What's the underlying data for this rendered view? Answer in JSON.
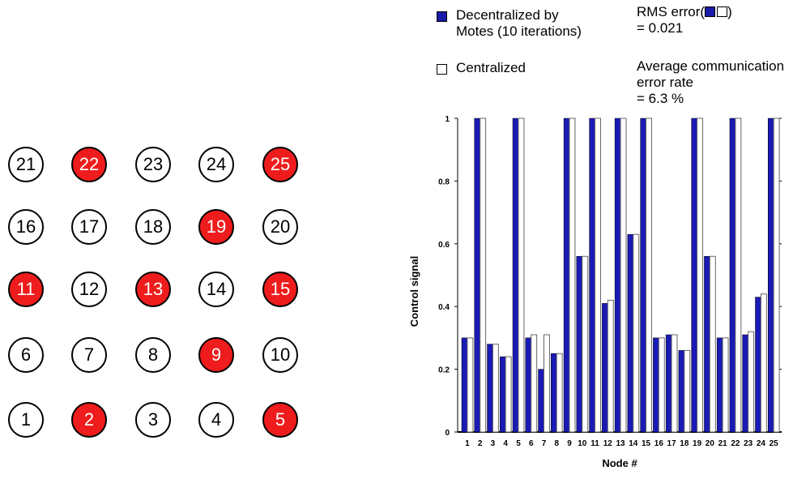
{
  "grid": {
    "rows": [
      [
        {
          "label": "21",
          "active": false
        },
        {
          "label": "22",
          "active": true
        },
        {
          "label": "23",
          "active": false
        },
        {
          "label": "24",
          "active": false
        },
        {
          "label": "25",
          "active": true
        }
      ],
      [
        {
          "label": "16",
          "active": false
        },
        {
          "label": "17",
          "active": false
        },
        {
          "label": "18",
          "active": false
        },
        {
          "label": "19",
          "active": true
        },
        {
          "label": "20",
          "active": false
        }
      ],
      [
        {
          "label": "11",
          "active": true
        },
        {
          "label": "12",
          "active": false
        },
        {
          "label": "13",
          "active": true
        },
        {
          "label": "14",
          "active": false
        },
        {
          "label": "15",
          "active": true
        }
      ],
      [
        {
          "label": "6",
          "active": false
        },
        {
          "label": "7",
          "active": false
        },
        {
          "label": "8",
          "active": false
        },
        {
          "label": "9",
          "active": true
        },
        {
          "label": "10",
          "active": false
        }
      ],
      [
        {
          "label": "1",
          "active": false
        },
        {
          "label": "2",
          "active": true
        },
        {
          "label": "3",
          "active": false
        },
        {
          "label": "4",
          "active": false
        },
        {
          "label": "5",
          "active": true
        }
      ]
    ],
    "active_color": "#ee1c1c"
  },
  "legend": {
    "decentralized_line1": "Decentralized by",
    "decentralized_line2": "Motes (10 iterations)",
    "centralized": "Centralized",
    "rms_label": "RMS  error(",
    "rms_close": ")",
    "rms_value": "= 0.021",
    "comm_line1": "Average communication",
    "comm_line2": "error rate",
    "comm_line3": "= 6.3 %"
  },
  "chart_data": {
    "type": "bar",
    "xlabel": "Node #",
    "ylabel": "Control signal",
    "ylim": [
      0,
      1
    ],
    "yticks": [
      "0",
      "0.2",
      "0.4",
      "0.6",
      "0.8",
      "1"
    ],
    "categories": [
      "1",
      "2",
      "3",
      "4",
      "5",
      "6",
      "7",
      "8",
      "9",
      "10",
      "11",
      "12",
      "13",
      "14",
      "15",
      "16",
      "17",
      "18",
      "19",
      "20",
      "21",
      "22",
      "23",
      "24",
      "25"
    ],
    "series": [
      {
        "name": "Decentralized by Motes (10 iterations)",
        "color": "#1a1ab4",
        "values": [
          0.3,
          1.0,
          0.28,
          0.24,
          1.0,
          0.3,
          0.2,
          0.25,
          1.0,
          0.56,
          1.0,
          0.41,
          1.0,
          0.63,
          1.0,
          0.3,
          0.31,
          0.26,
          1.0,
          0.56,
          0.3,
          1.0,
          0.31,
          0.43,
          1.0
        ]
      },
      {
        "name": "Centralized",
        "color": "#ffffff",
        "values": [
          0.3,
          1.0,
          0.28,
          0.24,
          1.0,
          0.31,
          0.31,
          0.25,
          1.0,
          0.56,
          1.0,
          0.42,
          1.0,
          0.63,
          1.0,
          0.3,
          0.31,
          0.26,
          1.0,
          0.56,
          0.3,
          1.0,
          0.32,
          0.44,
          1.0
        ]
      }
    ]
  }
}
